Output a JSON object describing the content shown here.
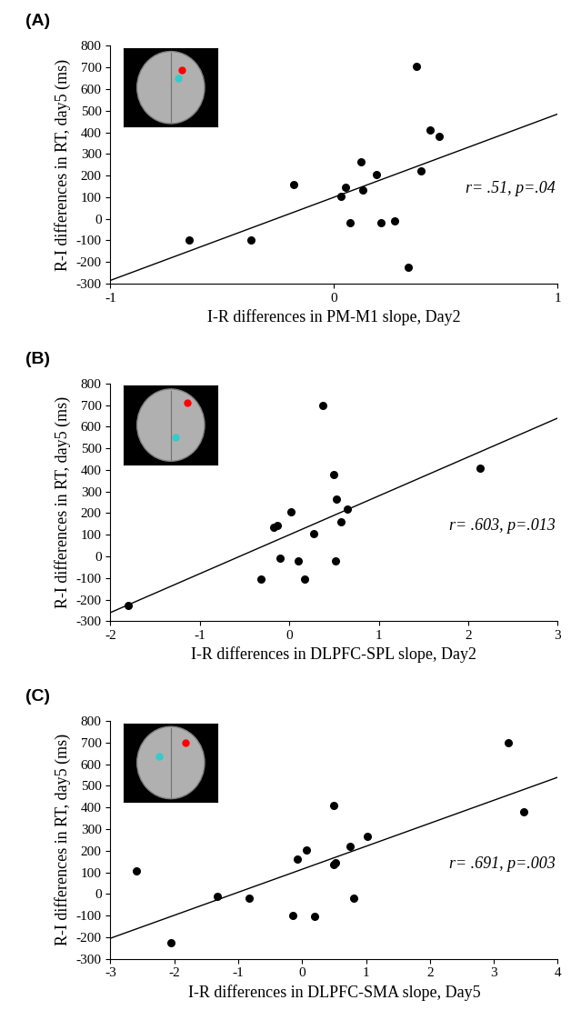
{
  "chart_data": [
    {
      "type": "scatter",
      "title": "(A)",
      "x_label": "I-R differences in PM-M1 slope, Day2",
      "y_label": "R-I differences in RT, day5 (ms)",
      "annotation": "r= .51, p=.04",
      "x": [
        -0.65,
        -0.37,
        -0.18,
        0.03,
        0.05,
        0.07,
        0.12,
        0.13,
        0.19,
        0.21,
        0.27,
        0.33,
        0.37,
        0.39,
        0.43,
        0.47
      ],
      "values": [
        -100,
        -100,
        160,
        105,
        145,
        -20,
        265,
        135,
        205,
        -20,
        -10,
        -225,
        705,
        220,
        410,
        380
      ],
      "fit_line": {
        "x": [
          -1,
          1
        ],
        "y": [
          -285,
          485
        ]
      },
      "color": "#000000",
      "marker": "circle",
      "xlim": [
        -1,
        1
      ],
      "xticks": [
        -1,
        0,
        1
      ],
      "ylim": [
        -300,
        800
      ],
      "yticks": [
        -300,
        -200,
        -100,
        0,
        100,
        200,
        300,
        400,
        500,
        600,
        700,
        800
      ]
    },
    {
      "type": "scatter",
      "title": "(B)",
      "x_label": "I-R differences in DLPFC-SPL slope, Day2",
      "y_label": "R-I differences in RT, day5 (ms)",
      "annotation": "r= .603, p=.013",
      "x": [
        -1.8,
        -0.32,
        -0.18,
        -0.13,
        -0.1,
        0.02,
        0.1,
        0.17,
        0.27,
        0.37,
        0.5,
        0.52,
        0.53,
        0.58,
        0.65,
        2.13
      ],
      "values": [
        -225,
        -105,
        135,
        145,
        -10,
        205,
        -20,
        -105,
        105,
        700,
        380,
        -20,
        265,
        160,
        220,
        410
      ],
      "fit_line": {
        "x": [
          -2,
          3
        ],
        "y": [
          -260,
          640
        ]
      },
      "color": "#000000",
      "marker": "circle",
      "xlim": [
        -2,
        3
      ],
      "xticks": [
        -2,
        -1,
        0,
        1,
        2,
        3
      ],
      "ylim": [
        -300,
        800
      ],
      "yticks": [
        -300,
        -200,
        -100,
        0,
        100,
        200,
        300,
        400,
        500,
        600,
        700,
        800
      ]
    },
    {
      "type": "scatter",
      "title": "(C)",
      "x_label": "I-R differences in DLPFC-SMA slope, Day5",
      "y_label": "R-I differences in RT, day5 (ms)",
      "annotation": "r= .691, p=.003",
      "x": [
        -2.6,
        -2.05,
        -1.33,
        -0.83,
        -0.15,
        -0.08,
        0.07,
        0.2,
        0.5,
        0.5,
        0.52,
        0.75,
        0.8,
        1.02,
        3.22,
        3.47
      ],
      "values": [
        105,
        -225,
        -10,
        -20,
        -100,
        160,
        205,
        -105,
        410,
        135,
        145,
        220,
        -20,
        265,
        700,
        380
      ],
      "fit_line": {
        "x": [
          -3,
          4
        ],
        "y": [
          -205,
          540
        ]
      },
      "color": "#000000",
      "marker": "circle",
      "xlim": [
        -3,
        4
      ],
      "xticks": [
        -3,
        -2,
        -1,
        0,
        1,
        2,
        3,
        4
      ],
      "ylim": [
        -300,
        800
      ],
      "yticks": [
        -300,
        -200,
        -100,
        0,
        100,
        200,
        300,
        400,
        500,
        600,
        700,
        800
      ]
    }
  ]
}
